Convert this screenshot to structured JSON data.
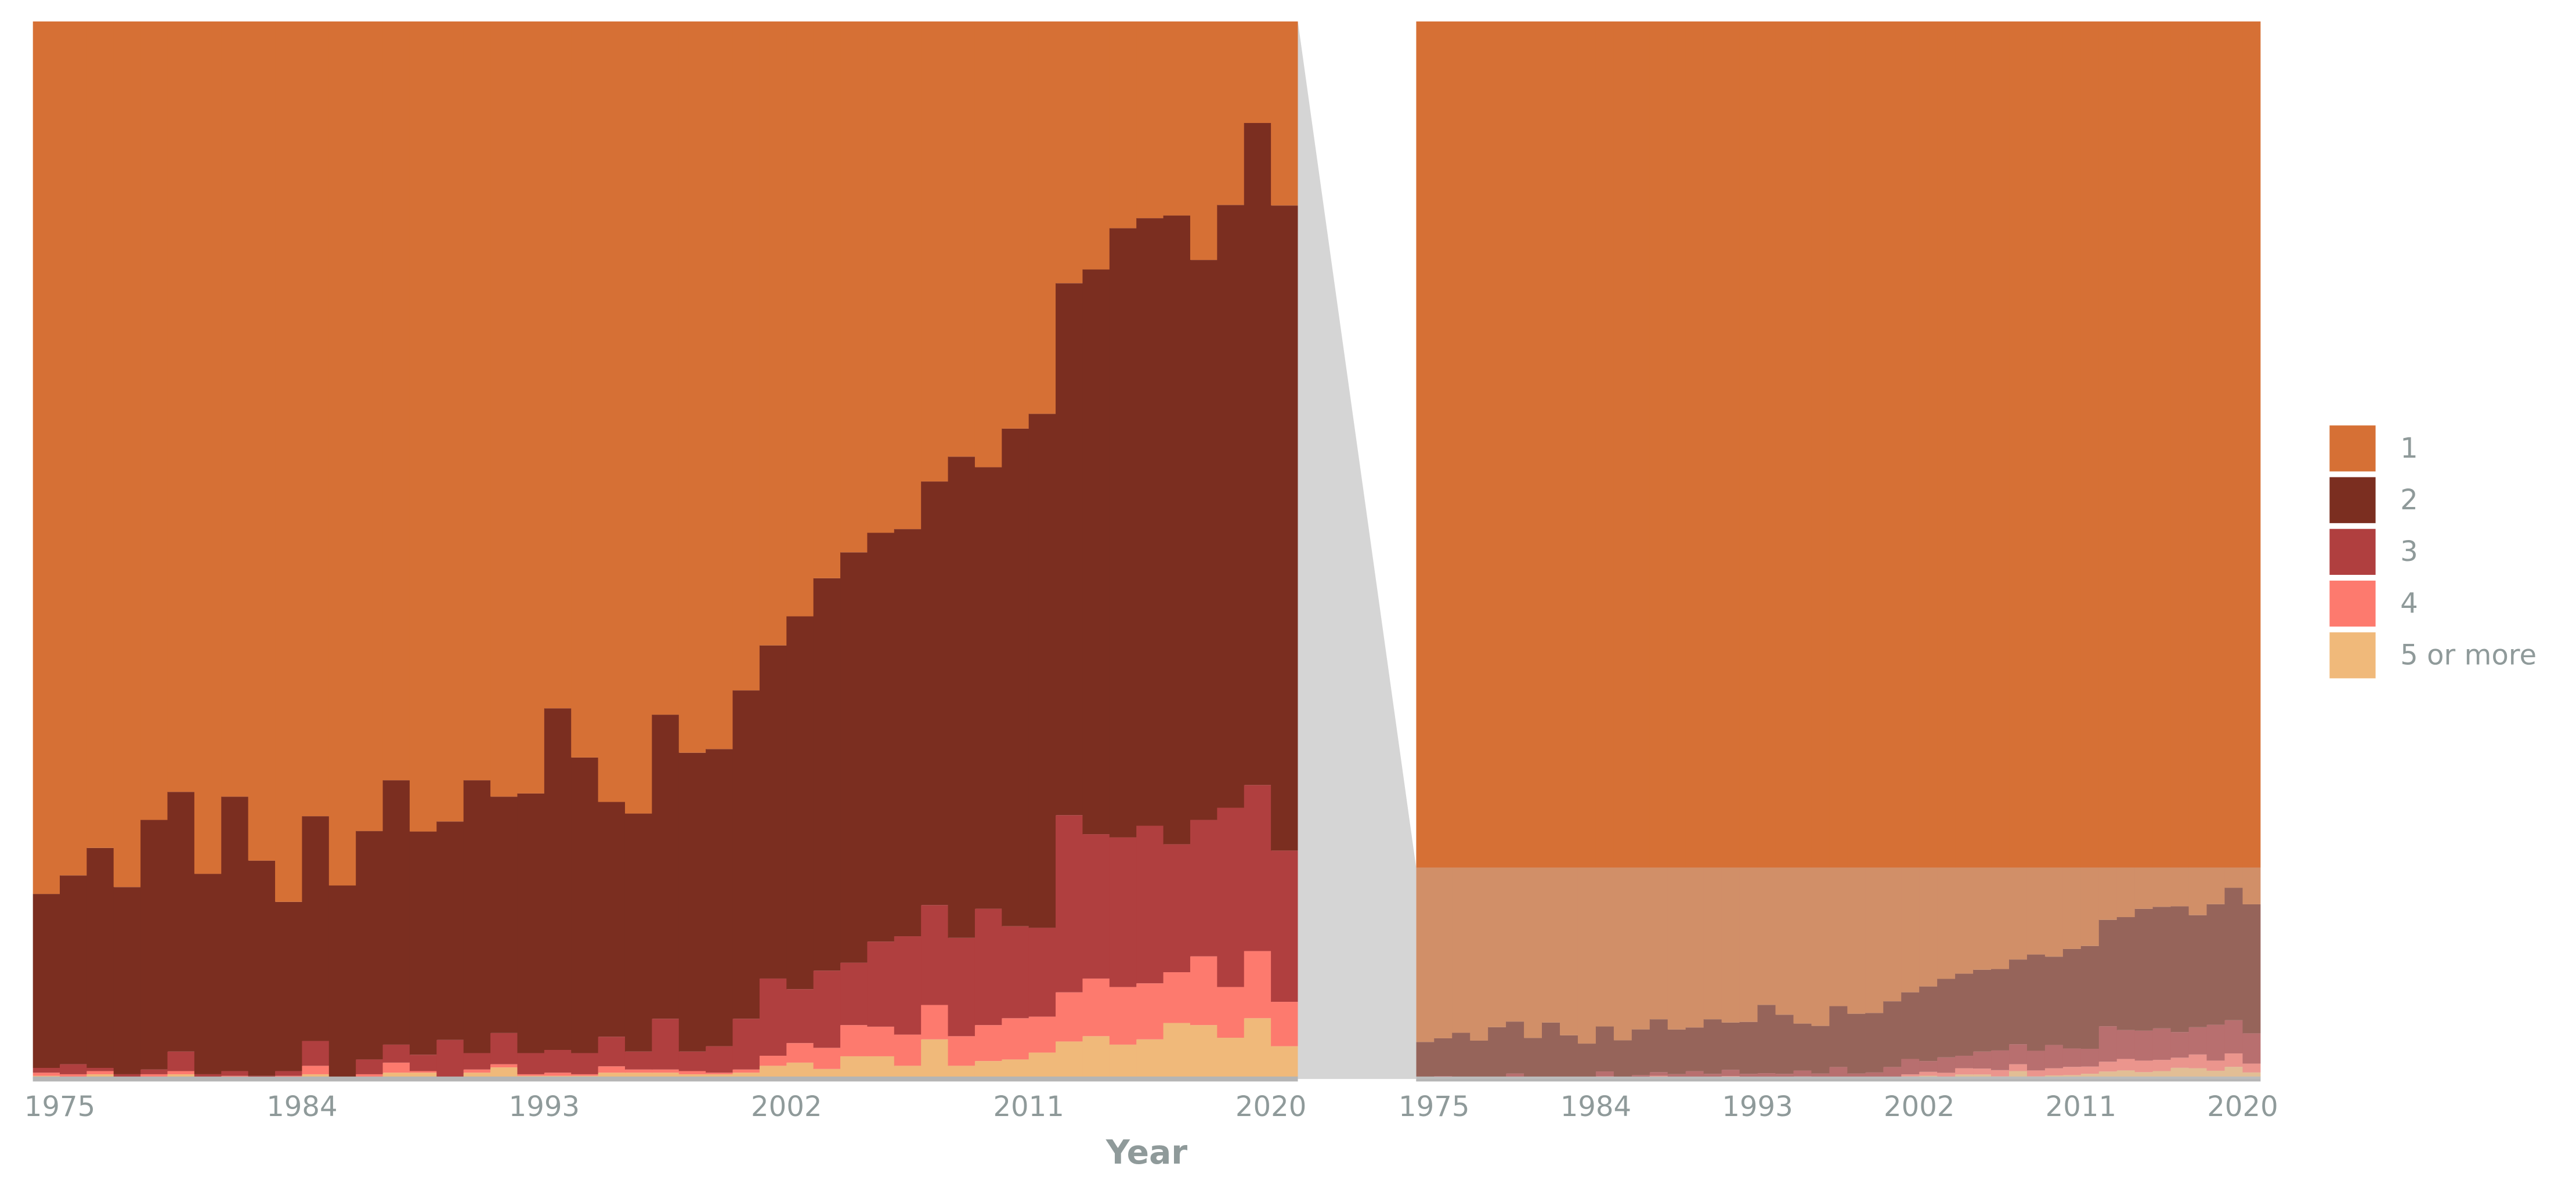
{
  "chart_data": {
    "type": "histogram",
    "xlabel": "Year",
    "bins": [
      1974,
      1975,
      1976,
      1977,
      1978,
      1979,
      1980,
      1981,
      1982,
      1983,
      1984,
      1985,
      1986,
      1987,
      1988,
      1989,
      1990,
      1991,
      1992,
      1993,
      1994,
      1995,
      1996,
      1997,
      1998,
      1999,
      2000,
      2001,
      2002,
      2003,
      2004,
      2005,
      2006,
      2007,
      2008,
      2009,
      2010,
      2011,
      2012,
      2013,
      2014,
      2015,
      2016,
      2017,
      2018,
      2019,
      2020,
      2021
    ],
    "xlim": [
      1974,
      2021
    ],
    "xticks": [
      1975,
      1984,
      1993,
      2002,
      2011,
      2020
    ],
    "ylim": [
      0,
      100
    ],
    "inset_ylim": [
      0,
      20
    ],
    "stacked": true,
    "legend": "right",
    "series": [
      {
        "name": "1",
        "color": "#d67035",
        "values": [
          96.5,
          96.15,
          95.63,
          96.37,
          95.1,
          94.57,
          96.12,
          94.66,
          95.87,
          96.65,
          95.03,
          96.34,
          95.31,
          94.35,
          95.32,
          95.13,
          94.35,
          94.66,
          94.6,
          92.99,
          93.92,
          94.76,
          94.98,
          93.11,
          93.83,
          93.76,
          92.65,
          91.8,
          91.25,
          90.53,
          90.04,
          89.67,
          89.6,
          88.7,
          88.23,
          88.43,
          87.7,
          87.42,
          84.95,
          84.69,
          83.91,
          83.72,
          83.67,
          84.51,
          83.47,
          81.92,
          83.48
        ]
      },
      {
        "name": "2",
        "color": "#7b2e20",
        "values": [
          3.29,
          3.57,
          4.16,
          3.54,
          4.72,
          4.91,
          3.79,
          5.19,
          4.07,
          3.2,
          4.25,
          3.63,
          4.32,
          5.0,
          4.22,
          4.13,
          5.16,
          4.47,
          4.91,
          6.46,
          5.59,
          4.44,
          4.5,
          5.75,
          5.65,
          5.62,
          6.21,
          6.3,
          7.05,
          7.42,
          7.76,
          7.73,
          7.7,
          8.01,
          9.1,
          8.35,
          9.41,
          9.72,
          10.06,
          10.68,
          11.52,
          11.49,
          11.89,
          10.59,
          11.4,
          12.52,
          12.2
        ]
      },
      {
        "name": "3",
        "color": "#b03f3f",
        "values": [
          0.09,
          0.19,
          0.06,
          0.06,
          0.09,
          0.37,
          0.06,
          0.09,
          0.03,
          0.09,
          0.47,
          0.03,
          0.28,
          0.34,
          0.31,
          0.71,
          0.31,
          0.59,
          0.4,
          0.43,
          0.4,
          0.56,
          0.34,
          0.96,
          0.37,
          0.5,
          0.96,
          1.46,
          1.02,
          1.46,
          1.18,
          1.61,
          1.86,
          1.89,
          1.86,
          2.2,
          1.74,
          1.68,
          3.35,
          2.73,
          2.83,
          2.98,
          2.42,
          2.58,
          3.39,
          3.14,
          2.86
        ]
      },
      {
        "name": "4",
        "color": "#fd7a6e",
        "values": [
          0.06,
          0.06,
          0.06,
          0.03,
          0.06,
          0.06,
          0.03,
          0.03,
          0.03,
          0.03,
          0.16,
          0,
          0.06,
          0.19,
          0.03,
          0.03,
          0.06,
          0.06,
          0.03,
          0.06,
          0.03,
          0.12,
          0.06,
          0.06,
          0.06,
          0.03,
          0.06,
          0.19,
          0.37,
          0.4,
          0.59,
          0.56,
          0.59,
          0.65,
          0.56,
          0.68,
          0.78,
          0.68,
          0.93,
          1.09,
          1.09,
          1.06,
          0.96,
          1.3,
          0.96,
          1.27,
          0.84
        ]
      },
      {
        "name": "5 or more",
        "color": "#f0b97a",
        "values": [
          0.06,
          0.03,
          0.09,
          0,
          0.03,
          0.09,
          0,
          0.03,
          0,
          0.03,
          0.09,
          0,
          0.03,
          0.12,
          0.12,
          0,
          0.12,
          0.22,
          0.06,
          0.06,
          0.06,
          0.12,
          0.12,
          0.12,
          0.09,
          0.09,
          0.12,
          0.25,
          0.31,
          0.19,
          0.43,
          0.43,
          0.25,
          0.75,
          0.25,
          0.34,
          0.37,
          0.5,
          0.71,
          0.81,
          0.65,
          0.75,
          1.06,
          1.02,
          0.78,
          1.15,
          0.62
        ]
      }
    ]
  }
}
